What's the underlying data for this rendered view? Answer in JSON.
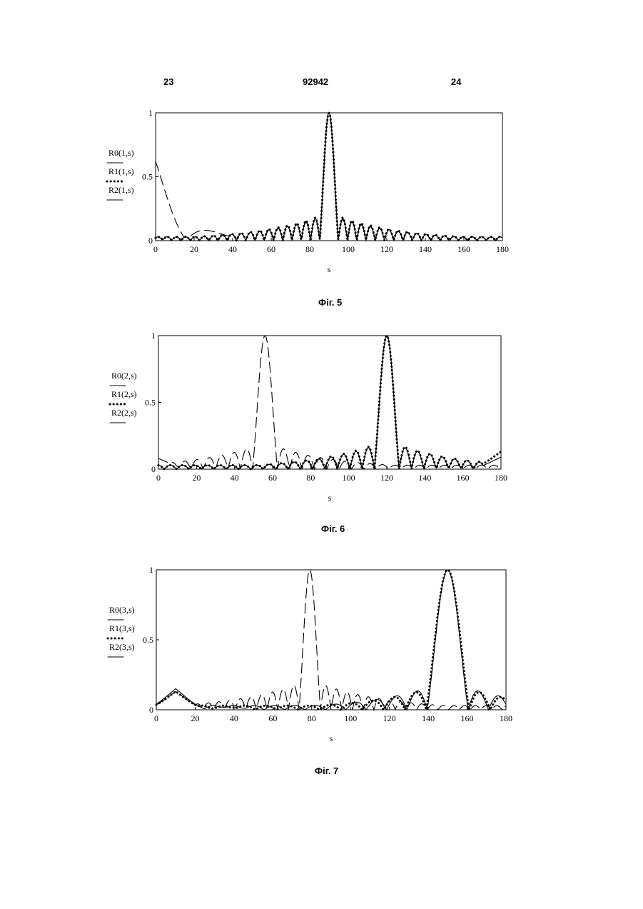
{
  "header": {
    "left_page": "23",
    "patent_number": "92942",
    "right_page": "24"
  },
  "figures": [
    {
      "caption": "Фіг. 5",
      "xlabel": "s",
      "legend": [
        "R0(1,s)",
        "R1(1,s)",
        "R2(1,s)"
      ]
    },
    {
      "caption": "Фіг. 6",
      "xlabel": "s",
      "legend": [
        "R0(2,s)",
        "R1(2,s)",
        "R2(2,s)"
      ]
    },
    {
      "caption": "Фіг. 7",
      "xlabel": "s",
      "legend": [
        "R0(3,s)",
        "R1(3,s)",
        "R2(3,s)"
      ]
    }
  ],
  "chart_data": [
    {
      "type": "line",
      "xlabel": "s",
      "ylabel": "",
      "xlim": [
        0,
        180
      ],
      "ylim": [
        0,
        1
      ],
      "xticks": [
        0,
        20,
        40,
        60,
        80,
        100,
        120,
        140,
        160,
        180
      ],
      "yticks": [
        0,
        0.5,
        1
      ],
      "series": [
        {
          "name": "R0(1,s)",
          "style": "dashed",
          "peak": 90,
          "mainlobe": 4.8,
          "sidelobe_level": 0.2,
          "edge_level": 0.62,
          "edge_center": 0
        },
        {
          "name": "R1(1,s)",
          "style": "dotted",
          "peak": 90,
          "mainlobe": 4.8,
          "sidelobe_level": 0.22,
          "edge_level": 0.02,
          "edge_center": 0
        },
        {
          "name": "R2(1,s)",
          "style": "solid",
          "peak": 90,
          "mainlobe": 4.8,
          "sidelobe_level": 0.21,
          "edge_level": 0.01,
          "edge_center": 0
        }
      ]
    },
    {
      "type": "line",
      "xlabel": "s",
      "ylabel": "",
      "xlim": [
        0,
        180
      ],
      "ylim": [
        0,
        1
      ],
      "xticks": [
        0,
        20,
        40,
        60,
        80,
        100,
        120,
        140,
        160,
        180
      ],
      "yticks": [
        0,
        0.5,
        1
      ],
      "series": [
        {
          "name": "R0(2,s)",
          "style": "dashed",
          "peak": 56,
          "mainlobe": 6.5,
          "sidelobe_level": 0.2,
          "edge_level": 0.08,
          "edge_center": 0
        },
        {
          "name": "R1(2,s)",
          "style": "dotted",
          "peak": 120,
          "mainlobe": 6.5,
          "sidelobe_level": 0.22,
          "edge_level": 0.13,
          "edge_center": 180
        },
        {
          "name": "R2(2,s)",
          "style": "solid",
          "peak": 120,
          "mainlobe": 6.5,
          "sidelobe_level": 0.21,
          "edge_level": 0.09,
          "edge_center": 180
        }
      ]
    },
    {
      "type": "line",
      "xlabel": "s",
      "ylabel": "",
      "xlim": [
        0,
        180
      ],
      "ylim": [
        0,
        1
      ],
      "xticks": [
        0,
        20,
        40,
        60,
        80,
        100,
        120,
        140,
        160,
        180
      ],
      "yticks": [
        0,
        0.5,
        1
      ],
      "series": [
        {
          "name": "R0(3,s)",
          "style": "dashed",
          "peak": 79,
          "mainlobe": 5.5,
          "sidelobe_level": 0.22,
          "edge_level": 0.13,
          "edge_center": 10
        },
        {
          "name": "R1(3,s)",
          "style": "dotted",
          "peak": 150,
          "mainlobe": 11,
          "sidelobe_level": 0.2,
          "edge_level": 0.13,
          "edge_center": 10
        },
        {
          "name": "R2(3,s)",
          "style": "solid",
          "peak": 150,
          "mainlobe": 10.5,
          "sidelobe_level": 0.21,
          "edge_level": 0.15,
          "edge_center": 10
        }
      ]
    }
  ]
}
